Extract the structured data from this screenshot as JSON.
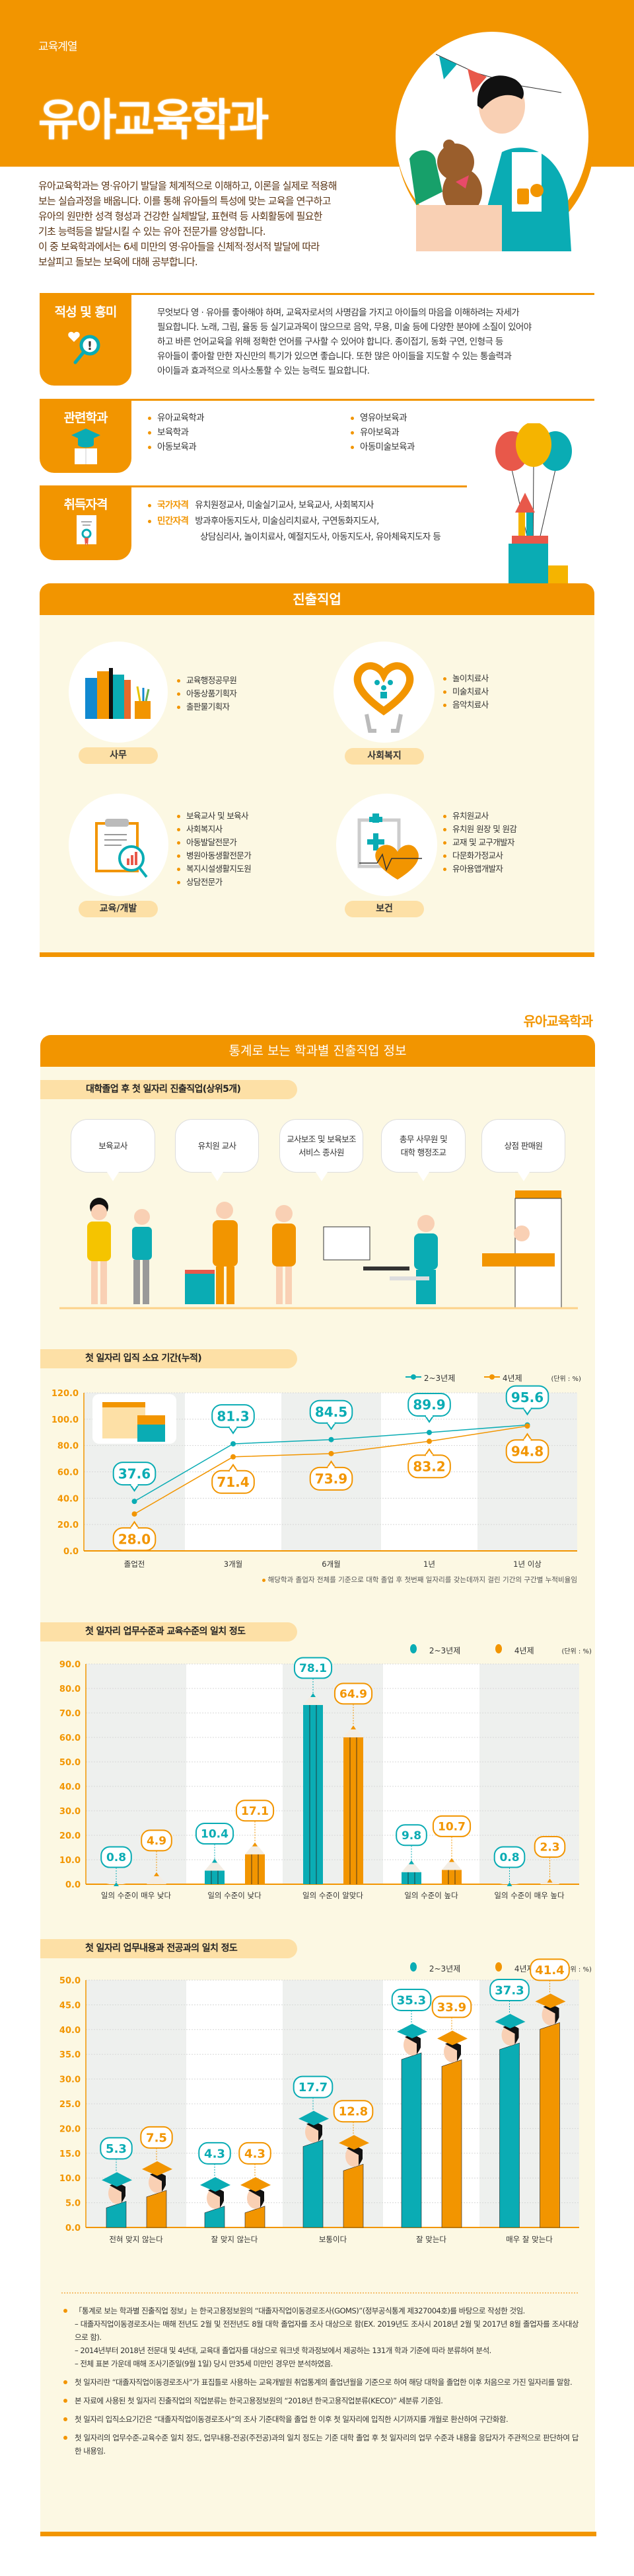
{
  "header": {
    "category": "교육계열",
    "title": "유아교육학과"
  },
  "intro": [
    "유아교육학과는 영·유아기 발달을 체계적으로 이해하고, 이론을 실제로 적용해",
    "보는 실습과정을 배웁니다. 이를 통해 유아들의 특성에 맞는 교육을 연구하고",
    "유아의 원만한 성격 형성과 건강한 실체발달, 표현력 등 사회활동에 필요한",
    "기초 능력등을 발달시킬 수 있는 유아 전문가를 양성합니다.",
    "이 중 보육학과에서는 6세 미만의 영·유아들을 신체적·정서적 발달에 따라",
    "보살피고 돌보는 보육에 대해 공부합니다."
  ],
  "aptitude": {
    "title": "적성 및 흥미",
    "icon": "magnifier-heart-icon",
    "lines": [
      "무엇보다 영 · 유아를 좋아해야 하며, 교육자로서의 사명감을 가지고 아이들의 마음을 이해하려는 자세가",
      "필요합니다. 노래, 그림, 율동 등 실기교과목이 많으므로 음악, 무용, 미술 등에 다양한 분야에 소질이 있어야",
      "하고 바른 언어교육을 위해 정확한 언어를 구사할 수 있어야 합니다. 종이접기, 동화 구연, 인형극 등",
      "유아들이 좋아할 만한 자신만의 특기가 있으면 좋습니다. 또한 많은 아이들을 지도할 수 있는 통솔력과",
      "아이들과 효과적으로 의사소통할 수 있는 능력도 필요합니다."
    ]
  },
  "related": {
    "title": "관련학과",
    "icon": "graduation-book-icon",
    "items": [
      "유아교육학과",
      "보육학과",
      "아동보육과",
      "영유아보육과",
      "유아보육과",
      "아동미술보육과"
    ]
  },
  "license": {
    "title": "취득자격",
    "icon": "certificate-icon",
    "national_label": "국가자격",
    "national": "유치원정교사, 미술실기교사, 보육교사, 사회복지사",
    "private_label": "민간자격",
    "private": [
      "방과후아동지도사, 미술심리치료사, 구연동화지도사,",
      "상담심리사, 놀이치료사, 예절지도사, 아동지도사, 유아체육지도자 등"
    ]
  },
  "careers": {
    "title": "진출직업",
    "groups": [
      {
        "label": "사무",
        "icon": "books-icon",
        "items": [
          "교육행정공무원",
          "아동상품기획자",
          "출판물기획자"
        ]
      },
      {
        "label": "사회복지",
        "icon": "heart-hands-icon",
        "items": [
          "놀이치료사",
          "미술치료사",
          "음악치료사"
        ]
      },
      {
        "label": "교육/개발",
        "icon": "clipboard-chart-icon",
        "items": [
          "보육교사 및 보육사",
          "사회복지사",
          "아동발달전문가",
          "병원아동생활전문가",
          "복지시설생활지도원",
          "상담전문가"
        ]
      },
      {
        "label": "보건",
        "icon": "medical-heart-icon",
        "items": [
          "유치원교사",
          "유치원 원장 및 원감",
          "교재 및 교구개발자",
          "다문화가정교사",
          "유아용앱개발자"
        ]
      }
    ]
  },
  "stats": {
    "dept_label": "유아교육학과",
    "title": "통계로 보는 학과별 진출직업 정보",
    "top_jobs_title": "대학졸업 후 첫 일자리 진출직업(상위5개)",
    "top_jobs": [
      [
        "보육교사"
      ],
      [
        "유치원 교사"
      ],
      [
        "교사보조 및 보육보조",
        "서비스 종사원"
      ],
      [
        "총무 사무원 및",
        "대학 행정조교"
      ],
      [
        "상점 판매원"
      ]
    ],
    "legend": {
      "a": "2~3년제",
      "b": "4년제",
      "unit": "(단위 : %)"
    },
    "colors": {
      "a": "#0aacb4",
      "b": "#f29500"
    }
  },
  "chart_data": [
    {
      "type": "line",
      "title": "첫 일자리 입직 소요 기간(누적)",
      "categories": [
        "졸업전",
        "3개월",
        "6개월",
        "1년",
        "1년 이상"
      ],
      "ylim": [
        0,
        120
      ],
      "yticks": [
        0,
        20,
        40,
        60,
        80,
        100,
        120
      ],
      "grid": true,
      "legend": "top-right",
      "series": [
        {
          "name": "2~3년제",
          "values": [
            37.6,
            81.3,
            84.5,
            89.9,
            95.6
          ]
        },
        {
          "name": "4년제",
          "values": [
            28.0,
            71.4,
            73.9,
            83.2,
            94.8
          ]
        }
      ],
      "note": "해당학과 졸업자 전체를 기준으로 대학 졸업 후 첫번째 일자리를 갖는데까지 걸린 기간의 구간별 누적비율임"
    },
    {
      "type": "bar",
      "title": "첫 일자리 업무수준과 교육수준의 일치 정도",
      "categories": [
        "일의 수준이 매우 낮다",
        "일의 수준이 낮다",
        "일의 수준이 알맞다",
        "일의 수준이 높다",
        "일의 수준이 매우 높다"
      ],
      "ylim": [
        0,
        90
      ],
      "yticks": [
        0,
        10,
        20,
        30,
        40,
        50,
        60,
        70,
        80,
        90
      ],
      "grid": true,
      "legend": "top-right",
      "series": [
        {
          "name": "2~3년제",
          "values": [
            0.8,
            10.4,
            78.1,
            9.8,
            0.8
          ]
        },
        {
          "name": "4년제",
          "values": [
            4.9,
            17.1,
            64.9,
            10.7,
            2.3
          ]
        }
      ]
    },
    {
      "type": "bar",
      "title": "첫 일자리 업무내용과 전공과의 일치 정도",
      "categories": [
        "전혀 맞지 않는다",
        "잘 맞지 않는다",
        "보통이다",
        "잘 맞는다",
        "매우 잘 맞는다"
      ],
      "ylim": [
        0,
        50
      ],
      "yticks": [
        0,
        5,
        10,
        15,
        20,
        25,
        30,
        35,
        40,
        45,
        50
      ],
      "grid": true,
      "legend": "top-right",
      "series": [
        {
          "name": "2~3년제",
          "values": [
            5.3,
            4.3,
            17.7,
            35.3,
            37.3
          ]
        },
        {
          "name": "4년제",
          "values": [
            7.5,
            4.3,
            12.8,
            33.9,
            41.4
          ]
        }
      ]
    }
  ],
  "footnotes": [
    {
      "text": "「통계로 보는 학과별 진출직업 정보」는 한국고용정보원의 “대졸자직업이동경로조사(GOMS)”(정부공식통계 제327004호)를 바탕으로 작성한 것임.",
      "subs": [
        "– 대졸자직업이동경로조사는 매해 전년도 2월 및 전전년도 8월 대학 졸업자를 조사 대상으로 함(EX. 2019년도 조사시 2018년 2월 및 2017년 8월 졸업자를 조사대상으로 함).",
        "– 2014년부터 2018년 전문대 및 4년대, 교육대 졸업자를 대상으로 워크넷 학과정보에서 제공하는 131개 학과 기준에 따라 분류하여 분석.",
        "– 전체 표본 가운데 매해 조사기준일(9월 1일) 당시 만35세 미만인 경우만 분석하였음."
      ]
    },
    {
      "text": "첫 일자리란 “대졸자직업이동경로조사”가 표집틀로 사용하는 교육개발원 취업통계의 졸업년월을 기준으로 하여 해당 대학을 졸업한 이후 처음으로 가진 일자리를 말함.",
      "subs": []
    },
    {
      "text": "본 자료에 사용된 첫 일자리 진출직업의 직업분류는 한국고용정보원의 “2018년 한국고용직업분류(KECO)” 세분류 기준임.",
      "subs": []
    },
    {
      "text": "첫 일자리 입직소요기간은 “대졸자직업이동경로조사”의 조사 기준대학을 졸업 한 이후 첫 일자리에 입직한 시기까지를 개월로 환산하여 구간화함.",
      "subs": []
    },
    {
      "text": "첫 일자리의 업무수준-교육수준 일치 정도, 업무내용-전공(주전공)과의 일치 정도는 기준 대학 졸업 후 첫 일자리의 업무 수준과 내용을 응답자가 주관적으로 판단하여 답한 내용임.",
      "subs": []
    }
  ]
}
